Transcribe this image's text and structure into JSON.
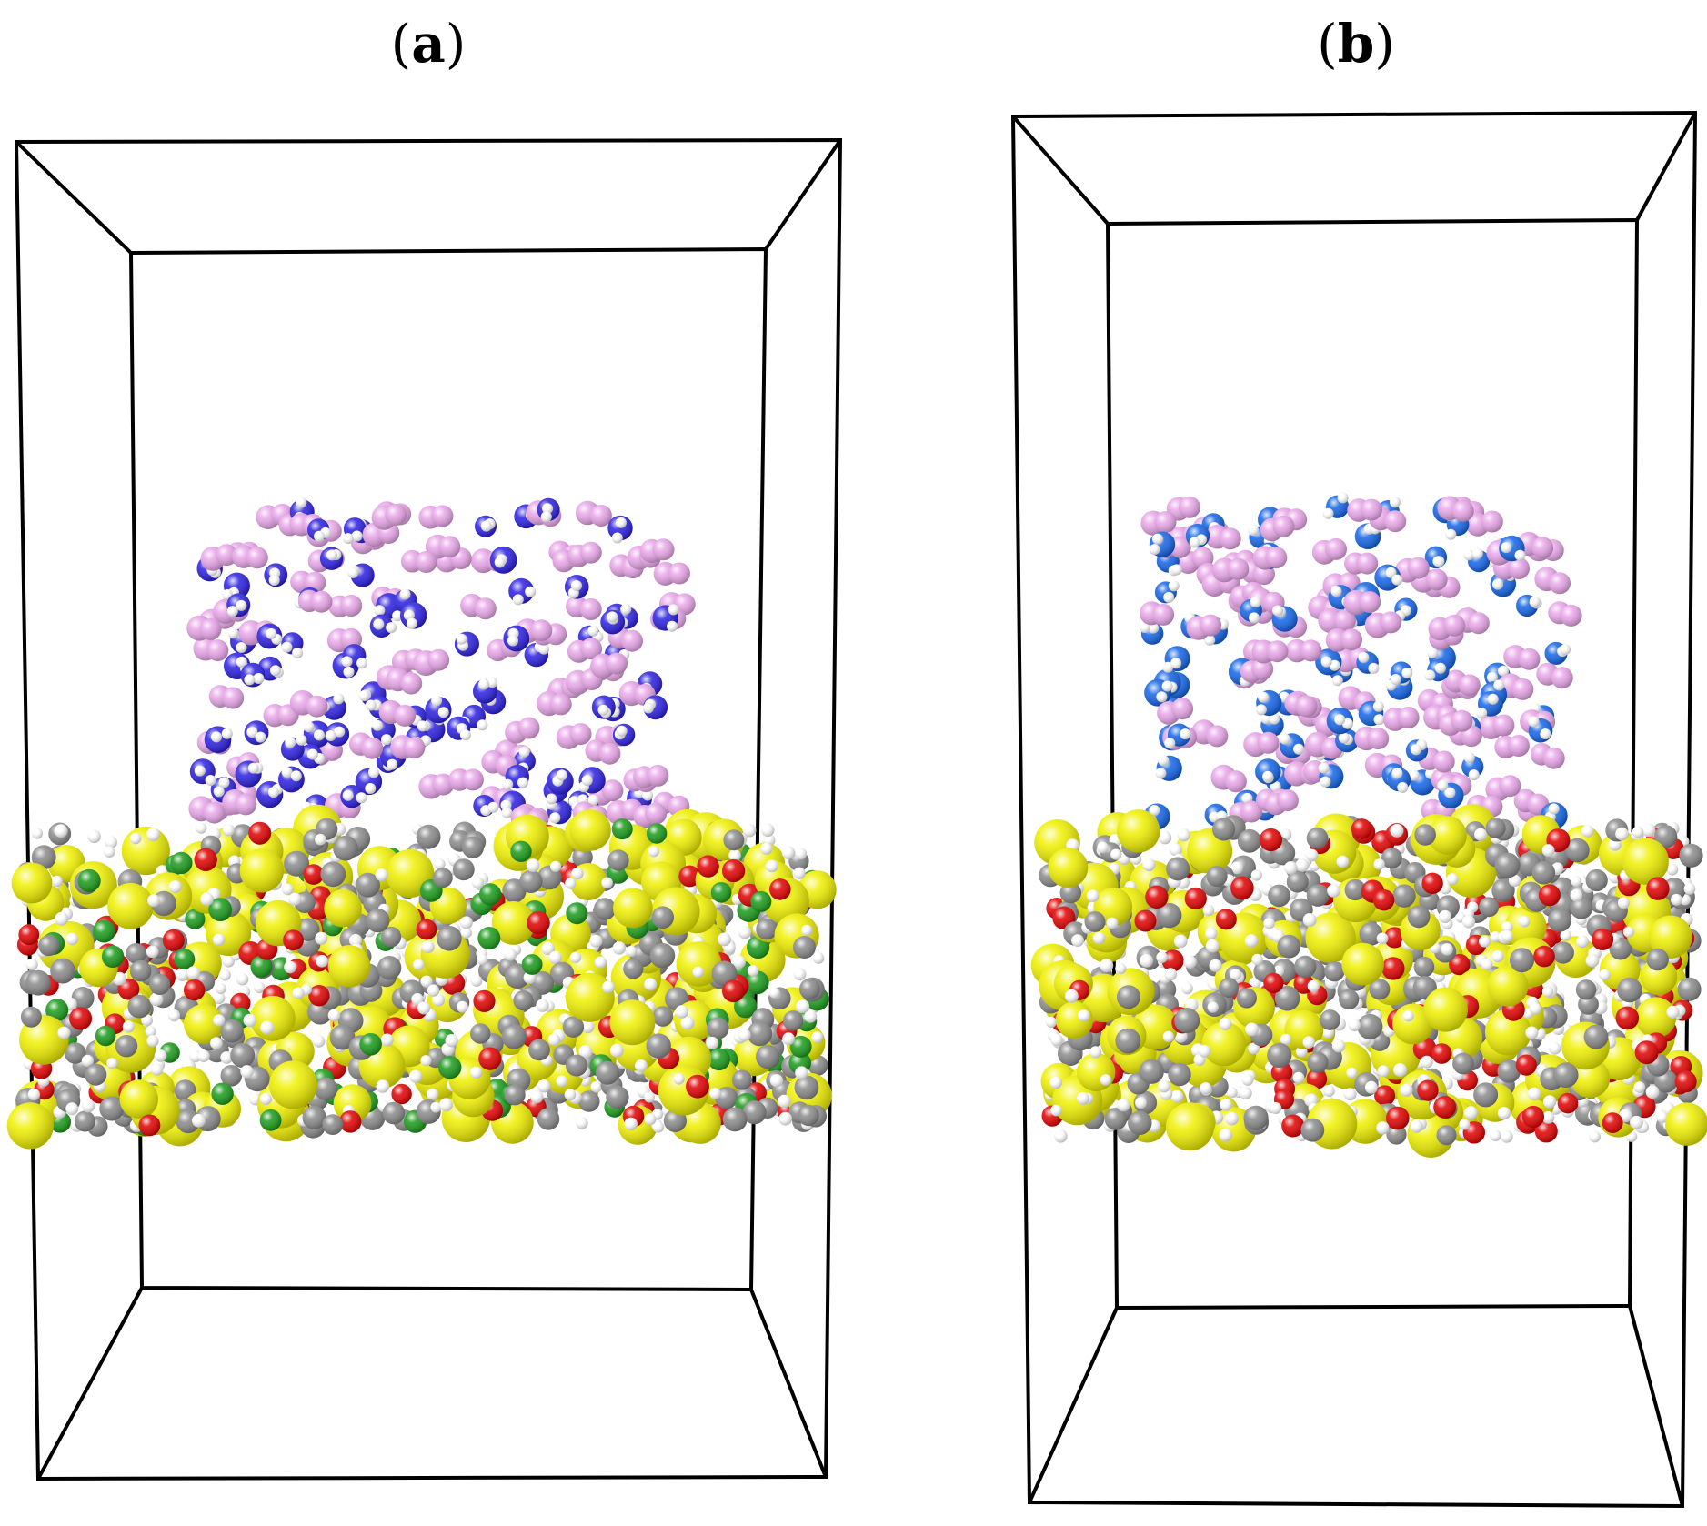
{
  "figure": {
    "panels": [
      {
        "id": "a",
        "label_open": "(",
        "label_letter": "a",
        "label_close": ")",
        "top_layer_colors": [
          "#2b1fe0",
          "#e8a6e8",
          "#ffffff"
        ],
        "bottom_layer_colors": [
          "#f0f000",
          "#8a8a8a",
          "#e00000",
          "#ffffff",
          "#1a9a1a"
        ]
      },
      {
        "id": "b",
        "label_open": "(",
        "label_letter": "b",
        "label_close": ")",
        "top_layer_colors": [
          "#1464e6",
          "#e8a6e8",
          "#ffffff"
        ],
        "bottom_layer_colors": [
          "#f0f000",
          "#8a8a8a",
          "#e00000",
          "#ffffff"
        ]
      }
    ],
    "colors": {
      "box_line": "#000000",
      "background": "#ffffff"
    }
  }
}
